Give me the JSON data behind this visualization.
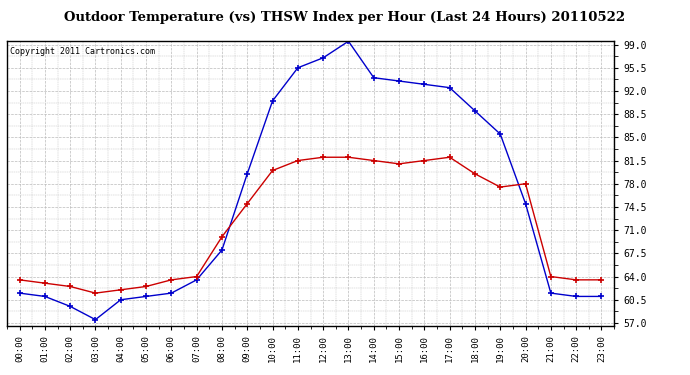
{
  "title": "Outdoor Temperature (vs) THSW Index per Hour (Last 24 Hours) 20110522",
  "copyright": "Copyright 2011 Cartronics.com",
  "x_labels": [
    "00:00",
    "01:00",
    "02:00",
    "03:00",
    "04:00",
    "05:00",
    "06:00",
    "07:00",
    "08:00",
    "09:00",
    "10:00",
    "11:00",
    "12:00",
    "13:00",
    "14:00",
    "15:00",
    "16:00",
    "17:00",
    "18:00",
    "19:00",
    "20:00",
    "21:00",
    "22:00",
    "23:00"
  ],
  "y_ticks": [
    57.0,
    60.5,
    64.0,
    67.5,
    71.0,
    74.5,
    78.0,
    81.5,
    85.0,
    88.5,
    92.0,
    95.5,
    99.0
  ],
  "y_min": 57.0,
  "y_max": 99.0,
  "temp_color": "#cc0000",
  "thsw_color": "#0000cc",
  "background_color": "#ffffff",
  "grid_color": "#bbbbbb",
  "temp_data": [
    63.5,
    63.0,
    62.5,
    61.5,
    62.0,
    62.5,
    63.5,
    64.0,
    70.0,
    75.0,
    80.0,
    81.5,
    82.0,
    82.0,
    81.5,
    81.0,
    81.5,
    82.0,
    79.5,
    77.5,
    78.0,
    64.0,
    63.5,
    63.5
  ],
  "thsw_data": [
    61.5,
    61.0,
    59.5,
    57.5,
    60.5,
    61.0,
    61.5,
    63.5,
    68.0,
    79.5,
    90.5,
    95.5,
    97.0,
    99.5,
    94.0,
    93.5,
    93.0,
    92.5,
    89.0,
    85.5,
    75.0,
    61.5,
    61.0,
    61.0
  ]
}
